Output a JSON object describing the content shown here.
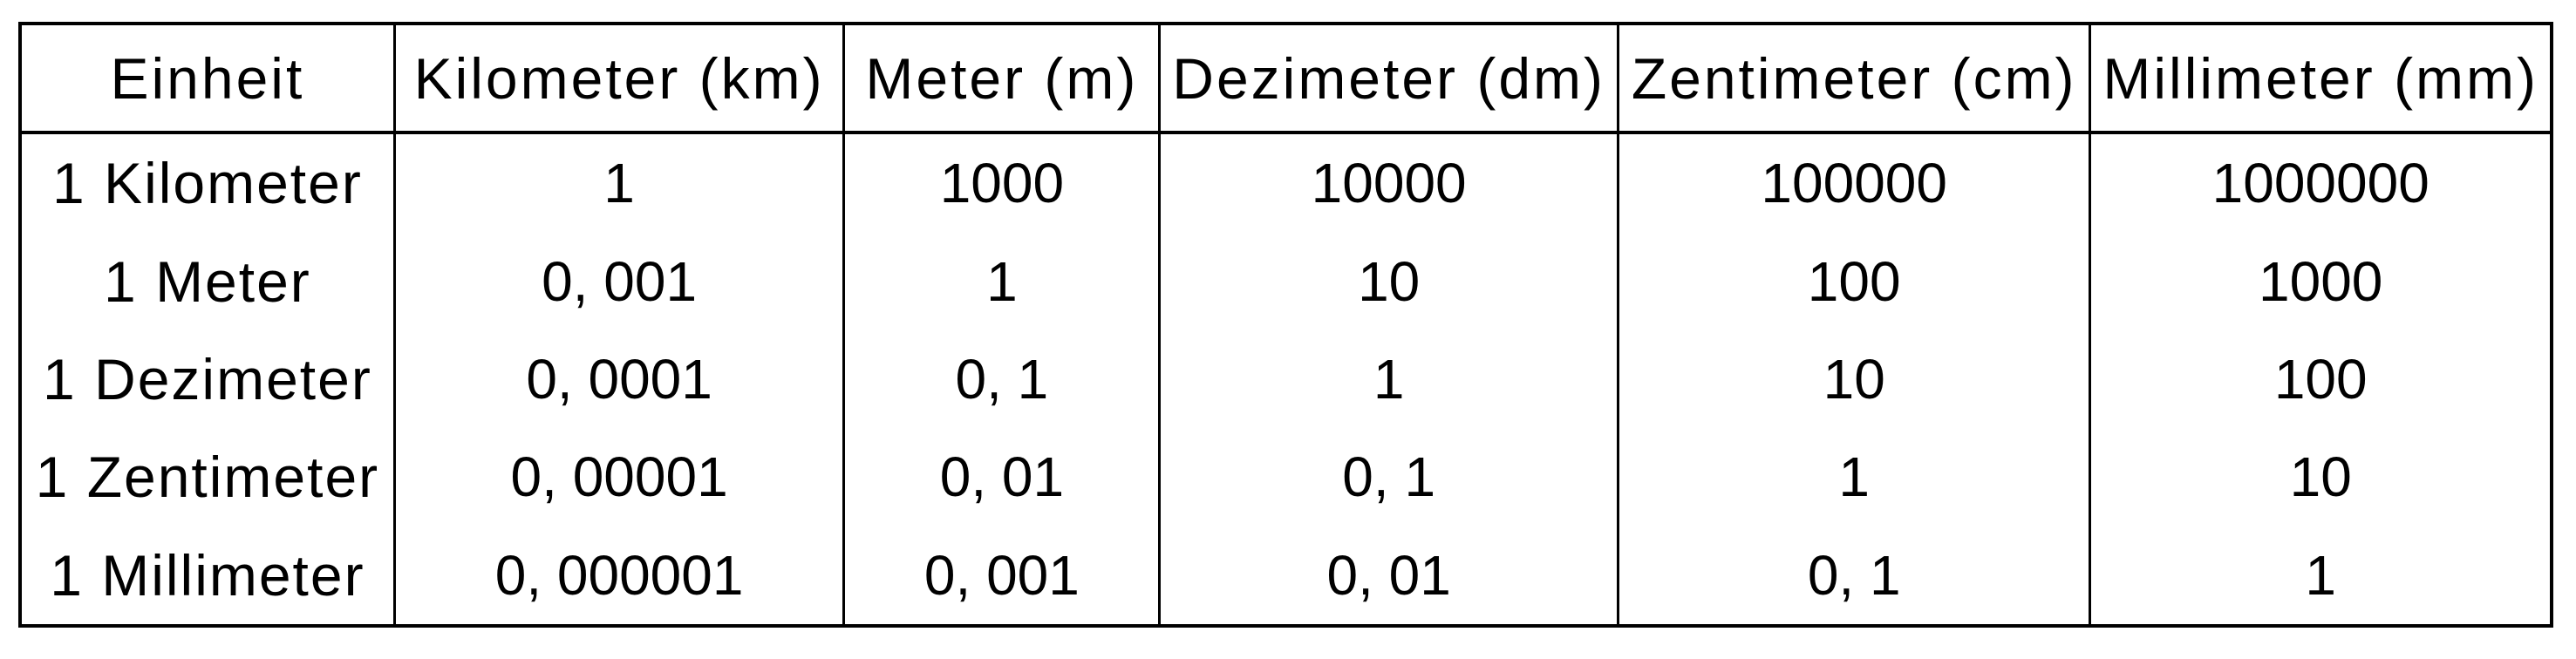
{
  "colors": {
    "background": "#ffffff",
    "text": "#000000",
    "border": "#000000"
  },
  "chart_data": {
    "type": "table",
    "columns": [
      "Einheit",
      "Kilometer (km)",
      "Meter (m)",
      "Dezimeter (dm)",
      "Zentimeter (cm)",
      "Millimeter (mm)"
    ],
    "rows": [
      {
        "label": "1 Kilometer",
        "values": [
          "1",
          "1000",
          "10000",
          "100000",
          "1000000"
        ]
      },
      {
        "label": "1 Meter",
        "values": [
          "0, 001",
          "1",
          "10",
          "100",
          "1000"
        ]
      },
      {
        "label": "1 Dezimeter",
        "values": [
          "0, 0001",
          "0, 1",
          "1",
          "10",
          "100"
        ]
      },
      {
        "label": "1 Zentimeter",
        "values": [
          "0, 00001",
          "0, 01",
          "0, 1",
          "1",
          "10"
        ]
      },
      {
        "label": "1 Millimeter",
        "values": [
          "0, 000001",
          "0, 001",
          "0, 01",
          "0, 1",
          "1"
        ]
      }
    ]
  }
}
